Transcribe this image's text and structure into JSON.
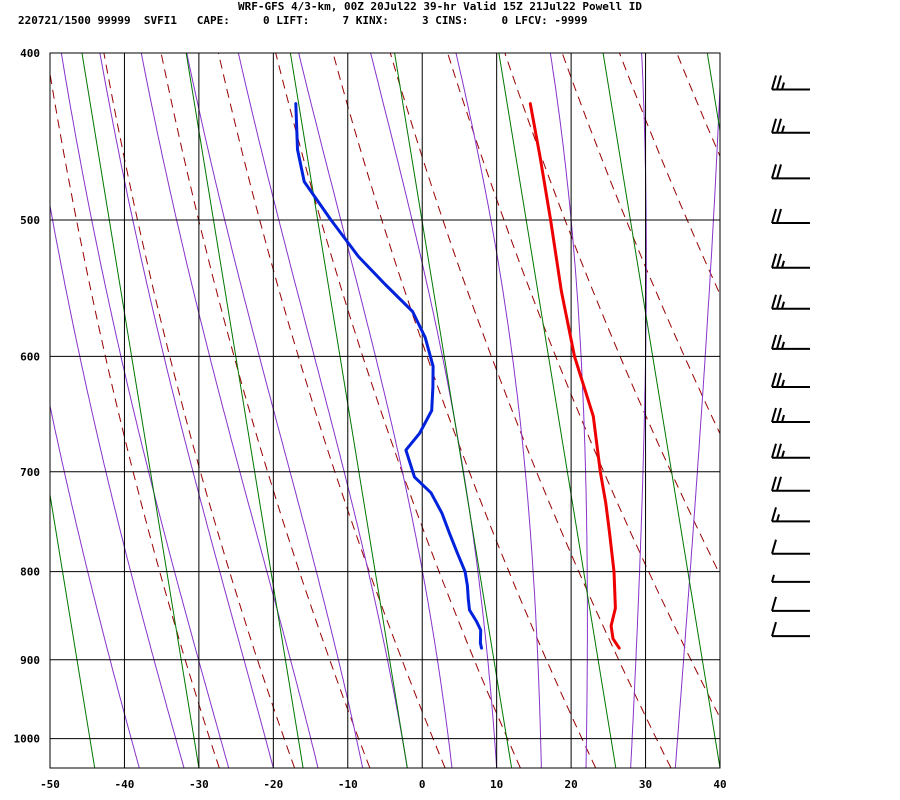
{
  "header": {
    "title": "WRF-GFS 4/3-km, 00Z 20Jul22 39-hr Valid 15Z 21Jul22 Powell ID",
    "stats": "220721/1500 99999  SVFI1   CAPE:     0 LIFT:     7 KINX:     3 CINS:     0 LFCV: -9999"
  },
  "colors": {
    "temperature": "#ee0000",
    "dewpoint": "#0022dd",
    "isotherm_grid": "#000000",
    "dry_adiabat": "#990000",
    "moist_adiabat": "#8833cc",
    "mixing_ratio": "#007700",
    "wind_barb": "#000000"
  },
  "chart_data": {
    "type": "line",
    "chart_kind": "skew-T log-P sounding",
    "xlim": [
      -50,
      40
    ],
    "ylim": [
      1040,
      400
    ],
    "y_scale": "log",
    "x_ticks": [
      "-50",
      "-40",
      "-30",
      "-20",
      "-10",
      "0",
      "10",
      "20",
      "30",
      "40"
    ],
    "y_ticks": [
      "400",
      "500",
      "600",
      "700",
      "800",
      "900",
      "1000"
    ],
    "grid": true,
    "series": [
      {
        "key": "temperature",
        "points": [
          {
            "p": 886,
            "t": 20.5
          },
          {
            "p": 875,
            "t": 19.2
          },
          {
            "p": 860,
            "t": 18.3
          },
          {
            "p": 840,
            "t": 18.0
          },
          {
            "p": 800,
            "t": 16.0
          },
          {
            "p": 760,
            "t": 13.5
          },
          {
            "p": 730,
            "t": 11.5
          },
          {
            "p": 700,
            "t": 9.2
          },
          {
            "p": 650,
            "t": 5.5
          },
          {
            "p": 600,
            "t": 0.0
          },
          {
            "p": 550,
            "t": -5.0
          },
          {
            "p": 500,
            "t": -10.0
          },
          {
            "p": 460,
            "t": -14.5
          },
          {
            "p": 428,
            "t": -18.5
          }
        ]
      },
      {
        "key": "dewpoint",
        "points": [
          {
            "p": 886,
            "t": 2.0
          },
          {
            "p": 880,
            "t": 1.6
          },
          {
            "p": 865,
            "t": 1.0
          },
          {
            "p": 855,
            "t": 0.0
          },
          {
            "p": 842,
            "t": -1.5
          },
          {
            "p": 830,
            "t": -2.2
          },
          {
            "p": 815,
            "t": -3.0
          },
          {
            "p": 800,
            "t": -4.0
          },
          {
            "p": 780,
            "t": -6.0
          },
          {
            "p": 760,
            "t": -8.0
          },
          {
            "p": 740,
            "t": -10.0
          },
          {
            "p": 720,
            "t": -12.5
          },
          {
            "p": 705,
            "t": -15.5
          },
          {
            "p": 680,
            "t": -18.0
          },
          {
            "p": 665,
            "t": -17.0
          },
          {
            "p": 645,
            "t": -16.5
          },
          {
            "p": 625,
            "t": -17.5
          },
          {
            "p": 608,
            "t": -18.5
          },
          {
            "p": 585,
            "t": -21.0
          },
          {
            "p": 565,
            "t": -24.0
          },
          {
            "p": 545,
            "t": -29.0
          },
          {
            "p": 525,
            "t": -34.0
          },
          {
            "p": 500,
            "t": -39.5
          },
          {
            "p": 475,
            "t": -45.0
          },
          {
            "p": 455,
            "t": -47.5
          },
          {
            "p": 428,
            "t": -50.0
          }
        ]
      }
    ],
    "wind_barbs": [
      {
        "p": 420,
        "speed": 25
      },
      {
        "p": 445,
        "speed": 25
      },
      {
        "p": 473,
        "speed": 20
      },
      {
        "p": 502,
        "speed": 20
      },
      {
        "p": 533,
        "speed": 25
      },
      {
        "p": 563,
        "speed": 25
      },
      {
        "p": 594,
        "speed": 25
      },
      {
        "p": 625,
        "speed": 25
      },
      {
        "p": 655,
        "speed": 25
      },
      {
        "p": 687,
        "speed": 25
      },
      {
        "p": 718,
        "speed": 20
      },
      {
        "p": 748,
        "speed": 15
      },
      {
        "p": 781,
        "speed": 10
      },
      {
        "p": 811,
        "speed": 5
      },
      {
        "p": 843,
        "speed": 10
      },
      {
        "p": 872,
        "speed": 10
      }
    ]
  }
}
